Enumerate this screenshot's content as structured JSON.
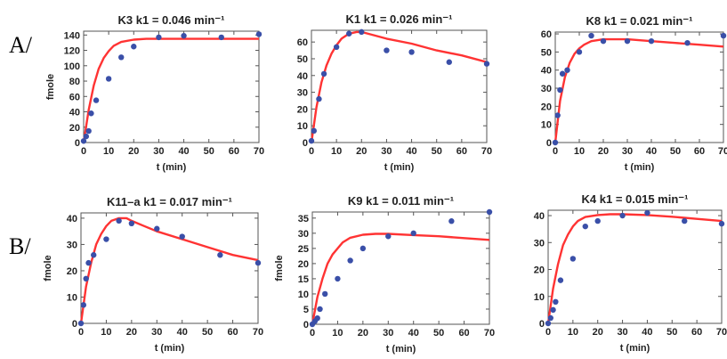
{
  "row_labels": [
    "A/",
    "B/"
  ],
  "colors": {
    "model_curve": "#ff3333",
    "measured_points": "#3a4fa8",
    "frame": "#555555",
    "text": "#222222"
  },
  "chart_data": [
    {
      "type": "scatter",
      "title": "K3   k1 = 0.046 min⁻¹",
      "xlabel": "t  (min)",
      "ylabel": "fmole",
      "xlim": [
        0,
        70
      ],
      "ylim": [
        0,
        145
      ],
      "xticks": [
        0,
        10,
        20,
        30,
        40,
        50,
        60,
        70
      ],
      "yticks": [
        0,
        20,
        40,
        60,
        80,
        100,
        120,
        140
      ],
      "series": [
        {
          "kind": "points",
          "x": [
            0,
            1,
            2,
            3,
            5,
            10,
            15,
            20,
            30,
            40,
            55,
            70
          ],
          "y": [
            2,
            8,
            15,
            38,
            55,
            83,
            111,
            125,
            137,
            139,
            137,
            141
          ]
        },
        {
          "kind": "curve",
          "x": [
            0,
            2,
            4,
            6,
            8,
            10,
            12,
            15,
            20,
            25,
            30,
            40,
            50,
            60,
            70
          ],
          "y": [
            0,
            42,
            74,
            96,
            110,
            119,
            126,
            131,
            134,
            135,
            135,
            135,
            135,
            135,
            135
          ]
        }
      ]
    },
    {
      "type": "scatter",
      "title": "K1   k1 = 0.026 min⁻¹",
      "xlabel": "t  (min)",
      "ylabel": "",
      "xlim": [
        0,
        70
      ],
      "ylim": [
        0,
        67
      ],
      "xticks": [
        0,
        10,
        20,
        30,
        40,
        50,
        60,
        70
      ],
      "yticks": [
        0,
        10,
        20,
        30,
        40,
        50,
        60
      ],
      "series": [
        {
          "kind": "points",
          "x": [
            0,
            1,
            3,
            5,
            10,
            15,
            20,
            30,
            40,
            55,
            70
          ],
          "y": [
            1,
            7,
            26,
            41,
            57,
            65,
            66,
            55,
            54,
            48,
            47
          ]
        },
        {
          "kind": "curve",
          "x": [
            0,
            2,
            4,
            6,
            8,
            10,
            12,
            15,
            18,
            20,
            25,
            30,
            40,
            50,
            60,
            70
          ],
          "y": [
            0,
            21,
            36,
            46,
            53,
            58,
            62,
            65,
            66,
            66,
            64,
            62,
            59,
            55,
            52,
            48
          ]
        }
      ]
    },
    {
      "type": "scatter",
      "title": "K8   k1 = 0.021 min⁻¹",
      "xlabel": "t  (min)",
      "ylabel": "",
      "xlim": [
        0,
        70
      ],
      "ylim": [
        0,
        61
      ],
      "xticks": [
        0,
        10,
        20,
        30,
        40,
        50,
        60,
        70
      ],
      "yticks": [
        0,
        10,
        20,
        30,
        40,
        50,
        60
      ],
      "series": [
        {
          "kind": "points",
          "x": [
            0,
            1,
            2,
            3,
            5,
            10,
            15,
            20,
            30,
            40,
            55,
            70
          ],
          "y": [
            0,
            15,
            29,
            38,
            40,
            50,
            59,
            56,
            56,
            56,
            55,
            59
          ]
        },
        {
          "kind": "curve",
          "x": [
            0,
            2,
            4,
            6,
            8,
            10,
            12,
            15,
            20,
            25,
            30,
            40,
            50,
            60,
            70
          ],
          "y": [
            0,
            23,
            36,
            44,
            49,
            52,
            54,
            56,
            57,
            57,
            57,
            56,
            55,
            54,
            53
          ]
        }
      ]
    },
    {
      "type": "scatter",
      "title": "K11–a   k1 = 0.017 min⁻¹",
      "xlabel": "t  (min)",
      "ylabel": "fmole",
      "xlim": [
        0,
        70
      ],
      "ylim": [
        0,
        42
      ],
      "xticks": [
        0,
        10,
        20,
        30,
        40,
        50,
        60,
        70
      ],
      "yticks": [
        0,
        10,
        20,
        30,
        40
      ],
      "series": [
        {
          "kind": "points",
          "x": [
            0,
            1,
            2,
            3,
            5,
            10,
            15,
            20,
            30,
            40,
            55,
            70
          ],
          "y": [
            0,
            7,
            17,
            23,
            26,
            32,
            39,
            38,
            36,
            33,
            26,
            23
          ]
        },
        {
          "kind": "curve",
          "x": [
            0,
            2,
            4,
            6,
            8,
            10,
            12,
            15,
            18,
            20,
            25,
            30,
            40,
            50,
            60,
            70
          ],
          "y": [
            0,
            14,
            23,
            30,
            34,
            37,
            39,
            40,
            40,
            39,
            37,
            35,
            32,
            29,
            26,
            24
          ]
        }
      ]
    },
    {
      "type": "scatter",
      "title": "K9   k1 = 0.011 min⁻¹",
      "xlabel": "t  (min)",
      "ylabel": "fmole",
      "xlim": [
        0,
        70
      ],
      "ylim": [
        0,
        37
      ],
      "xticks": [
        0,
        10,
        20,
        30,
        40,
        50,
        60,
        70
      ],
      "yticks": [
        0,
        5,
        10,
        15,
        20,
        25,
        30,
        35
      ],
      "series": [
        {
          "kind": "points",
          "x": [
            0,
            1,
            2,
            3,
            5,
            10,
            15,
            20,
            30,
            40,
            55,
            70
          ],
          "y": [
            0,
            1,
            2,
            5,
            10,
            15,
            21,
            25,
            29,
            30,
            34,
            37
          ]
        },
        {
          "kind": "curve",
          "x": [
            0,
            2,
            4,
            6,
            8,
            10,
            12,
            15,
            20,
            25,
            30,
            40,
            50,
            60,
            70
          ],
          "y": [
            0,
            9,
            15,
            20,
            23,
            25,
            27,
            28.5,
            29.5,
            29.8,
            29.8,
            29.4,
            29,
            28.4,
            27.8
          ]
        }
      ]
    },
    {
      "type": "scatter",
      "title": "K4   k1 = 0.015 min⁻¹",
      "xlabel": "t  (min)",
      "ylabel": "",
      "xlim": [
        0,
        70
      ],
      "ylim": [
        0,
        42
      ],
      "xticks": [
        0,
        10,
        20,
        30,
        40,
        50,
        60,
        70
      ],
      "yticks": [
        0,
        10,
        20,
        30,
        40
      ],
      "series": [
        {
          "kind": "points",
          "x": [
            0,
            1,
            2,
            3,
            5,
            10,
            15,
            20,
            30,
            40,
            55,
            70
          ],
          "y": [
            0,
            2,
            5,
            8,
            16,
            24,
            36,
            38,
            40,
            41,
            38,
            37
          ]
        },
        {
          "kind": "curve",
          "x": [
            0,
            2,
            4,
            6,
            8,
            10,
            12,
            15,
            20,
            25,
            30,
            40,
            50,
            60,
            70
          ],
          "y": [
            0,
            13,
            22,
            29,
            33,
            36,
            38,
            39.5,
            40.2,
            40.5,
            40.5,
            40.2,
            39.6,
            38.8,
            38
          ]
        }
      ]
    }
  ]
}
